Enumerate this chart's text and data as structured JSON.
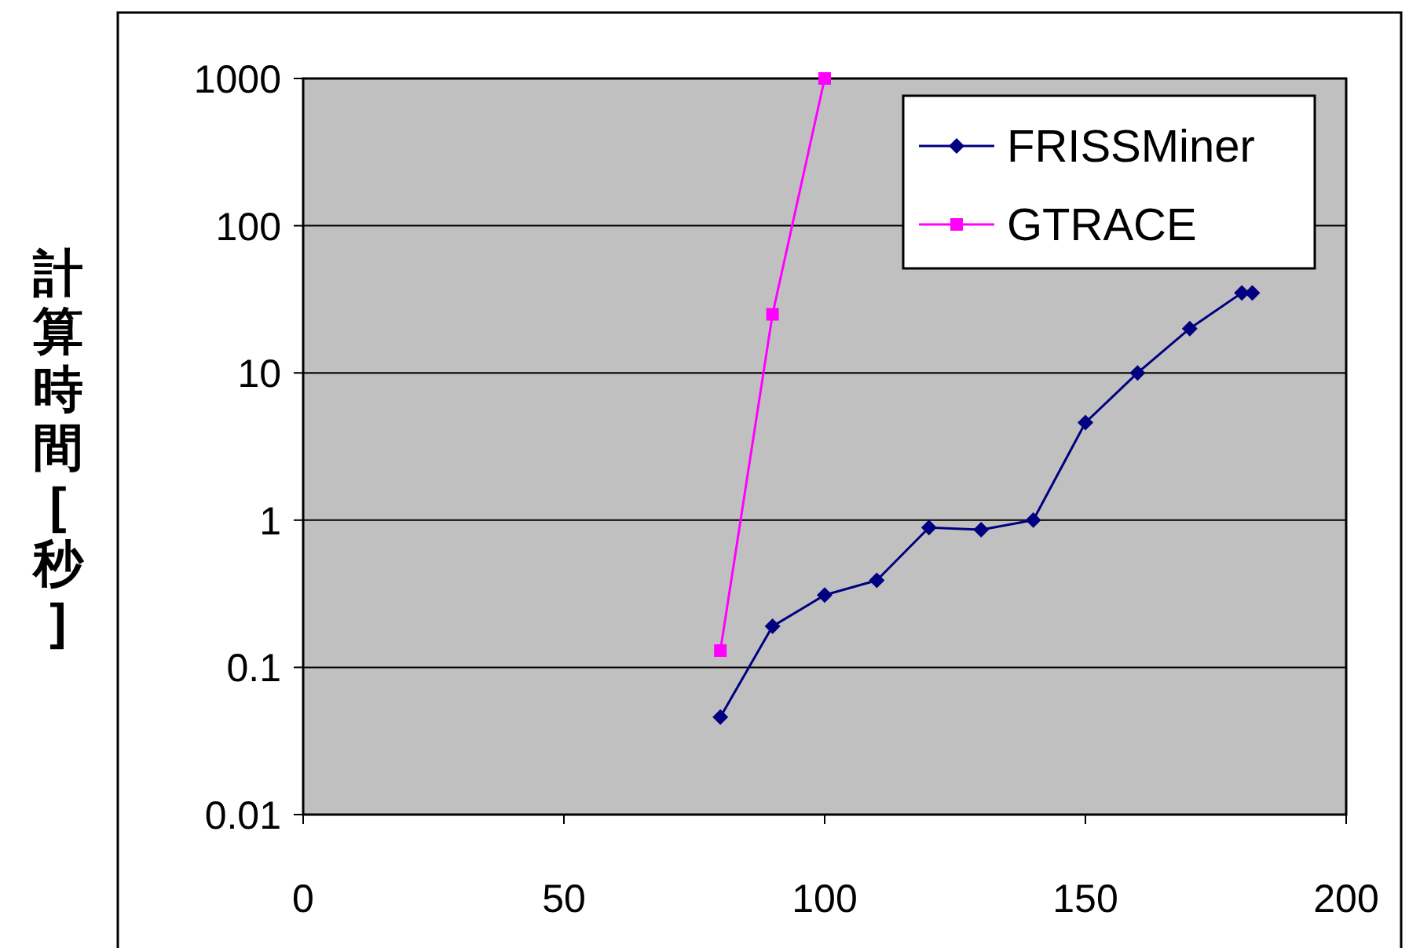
{
  "chart_data": {
    "type": "line",
    "ylabel": "計算時間[秒]",
    "xlim": [
      0,
      200
    ],
    "xticks": [
      0,
      50,
      100,
      150,
      200
    ],
    "ylim": [
      0.01,
      1000
    ],
    "yticks": [
      0.01,
      0.1,
      1,
      10,
      100,
      1000
    ],
    "log": "y",
    "grid": "y",
    "legend": "top right",
    "series": [
      {
        "name": "FRISSMiner",
        "color": "#000080",
        "marker": "diamond",
        "x": [
          80,
          90,
          100,
          110,
          120,
          130,
          140,
          150,
          160,
          170,
          180,
          182
        ],
        "values": [
          0.046,
          0.19,
          0.31,
          0.39,
          0.89,
          0.86,
          1.0,
          4.6,
          10,
          20,
          35,
          35
        ]
      },
      {
        "name": "GTRACE",
        "color": "#ff00ff",
        "marker": "square",
        "x": [
          80,
          90,
          100
        ],
        "values": [
          0.13,
          25,
          1000
        ]
      }
    ]
  }
}
